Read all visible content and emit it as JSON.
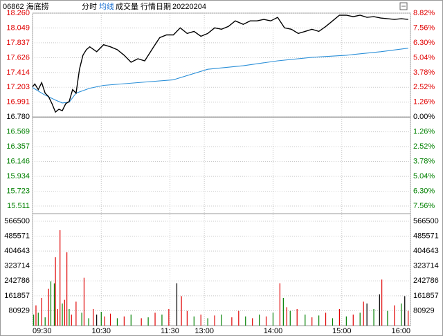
{
  "chart_data": {
    "type": "intraday",
    "header": {
      "code": "06862 海底捞",
      "tabs": [
        "分时",
        "均线",
        "成交量"
      ],
      "date_label": "行情日期",
      "date": "20220204"
    },
    "xlim": [
      0,
      330
    ],
    "xticks": [
      {
        "value": 0,
        "label": "09:30"
      },
      {
        "value": 60,
        "label": "10:30"
      },
      {
        "value": 120,
        "label": "11:30"
      },
      {
        "value": 150,
        "label": "13:00"
      },
      {
        "value": 210,
        "label": "14:00"
      },
      {
        "value": 270,
        "label": "15:00"
      },
      {
        "value": 330,
        "label": "16:00"
      }
    ],
    "ylim": [
      15.511,
      18.26
    ],
    "yticks": [
      {
        "value": 18.26,
        "label": "18.260"
      },
      18.049,
      17.837,
      17.626,
      17.414,
      17.203,
      16.991,
      {
        "value": 16.78,
        "label": "16.780"
      },
      16.569,
      16.357,
      16.146,
      15.934,
      15.723,
      15.511
    ],
    "y2lim": [
      -7.56,
      8.82
    ],
    "y2ticks": [
      {
        "value": 8.82,
        "label": "8.82%"
      },
      {
        "value": 7.56,
        "label": "7.56%"
      },
      {
        "value": 6.3,
        "label": "6.30%"
      },
      {
        "value": 5.04,
        "label": "5.04%"
      },
      {
        "value": 3.78,
        "label": "3.78%"
      },
      {
        "value": 2.52,
        "label": "2.52%"
      },
      {
        "value": 1.26,
        "label": "1.26%"
      },
      {
        "value": 0,
        "label": "0.00%"
      },
      {
        "value": -1.26,
        "label": "1.26%"
      },
      {
        "value": -2.52,
        "label": "2.52%"
      },
      {
        "value": -3.78,
        "label": "3.78%"
      },
      {
        "value": -5.04,
        "label": "5.04%"
      },
      {
        "value": -6.3,
        "label": "6.30%"
      },
      {
        "value": -7.56,
        "label": "7.56%"
      }
    ],
    "volume_ylim": [
      0,
      566500
    ],
    "volume_yticks": [
      566500,
      485571,
      404643,
      323714,
      242786,
      161857,
      80929
    ],
    "up_color": "#e00000",
    "down_color": "#008000",
    "flat_color": "#000000",
    "price": {
      "color": "#000000",
      "x": [
        0,
        2,
        5,
        8,
        11,
        14,
        17,
        20,
        23,
        26,
        29,
        32,
        35,
        38,
        41,
        44,
        47,
        50,
        56,
        62,
        68,
        74,
        80,
        86,
        92,
        98,
        105,
        111,
        117,
        123,
        129,
        135,
        141,
        147,
        153,
        159,
        165,
        171,
        177,
        184,
        190,
        196,
        202,
        208,
        214,
        220,
        226,
        232,
        238,
        244,
        250,
        256,
        262,
        268,
        274,
        280,
        286,
        292,
        298,
        304,
        310,
        316,
        322,
        328
      ],
      "values": [
        17.21,
        17.25,
        17.17,
        17.27,
        17.12,
        17.07,
        16.97,
        16.85,
        16.89,
        16.87,
        16.97,
        17.0,
        17.17,
        17.12,
        17.46,
        17.66,
        17.74,
        17.78,
        17.71,
        17.81,
        17.78,
        17.74,
        17.66,
        17.56,
        17.61,
        17.58,
        17.76,
        17.91,
        17.95,
        17.95,
        18.05,
        17.97,
        18.0,
        17.93,
        17.97,
        18.05,
        18.03,
        18.07,
        18.15,
        18.1,
        18.15,
        18.15,
        18.17,
        18.15,
        18.2,
        18.05,
        18.03,
        17.97,
        18.0,
        18.03,
        18.0,
        18.07,
        18.15,
        18.23,
        18.23,
        18.21,
        18.23,
        18.2,
        18.21,
        18.19,
        18.18,
        18.17,
        18.18,
        18.17
      ]
    },
    "average": {
      "color": "#2a8fd8",
      "x": [
        0,
        10,
        20,
        26,
        32,
        38,
        50,
        62,
        92,
        123,
        153,
        184,
        214,
        244,
        274,
        304,
        328
      ],
      "values": [
        17.2,
        17.1,
        17.02,
        16.98,
        16.99,
        17.12,
        17.19,
        17.23,
        17.27,
        17.31,
        17.46,
        17.51,
        17.58,
        17.63,
        17.66,
        17.71,
        17.76
      ]
    },
    "volume": {
      "x": [
        1,
        3,
        5,
        8,
        11,
        14,
        16,
        19,
        20,
        22,
        24,
        26,
        28,
        30,
        32,
        34,
        38,
        43,
        45,
        49,
        53,
        56,
        60,
        63,
        68,
        74,
        80,
        86,
        95,
        101,
        107,
        113,
        119,
        126,
        130,
        135,
        141,
        147,
        153,
        159,
        165,
        174,
        180,
        186,
        192,
        198,
        204,
        210,
        216,
        219,
        222,
        225,
        231,
        238,
        244,
        250,
        256,
        262,
        268,
        274,
        280,
        286,
        289,
        292,
        298,
        303,
        305,
        310,
        316,
        322,
        325,
        328
      ],
      "values": [
        60000,
        110000,
        70000,
        150000,
        45000,
        200000,
        240000,
        229000,
        371000,
        90000,
        518000,
        120000,
        140000,
        398000,
        90000,
        60000,
        130000,
        70000,
        260000,
        40000,
        90000,
        60000,
        75000,
        50000,
        65000,
        40000,
        50000,
        60000,
        40000,
        45000,
        70000,
        60000,
        90000,
        230000,
        160000,
        80000,
        50000,
        60000,
        40000,
        55000,
        60000,
        45000,
        80000,
        50000,
        40000,
        60000,
        50000,
        70000,
        230000,
        150000,
        100000,
        80000,
        90000,
        60000,
        45000,
        55000,
        70000,
        40000,
        90000,
        50000,
        60000,
        70000,
        130000,
        120000,
        90000,
        170000,
        250000,
        80000,
        110000,
        120000,
        160000,
        80000
      ],
      "colors": [
        "#008000",
        "#e00000",
        "#008000",
        "#e00000",
        "#008000",
        "#e00000",
        "#008000",
        "#008000",
        "#e00000",
        "#e00000",
        "#e00000",
        "#008000",
        "#e00000",
        "#e00000",
        "#008000",
        "#e00000",
        "#e00000",
        "#008000",
        "#e00000",
        "#008000",
        "#e00000",
        "#000000",
        "#008000",
        "#e00000",
        "#e00000",
        "#008000",
        "#e00000",
        "#008000",
        "#e00000",
        "#008000",
        "#e00000",
        "#008000",
        "#e00000",
        "#000000",
        "#e00000",
        "#e00000",
        "#008000",
        "#e00000",
        "#008000",
        "#e00000",
        "#008000",
        "#e00000",
        "#e00000",
        "#008000",
        "#e00000",
        "#008000",
        "#e00000",
        "#008000",
        "#e00000",
        "#008000",
        "#e00000",
        "#008000",
        "#e00000",
        "#008000",
        "#e00000",
        "#008000",
        "#e00000",
        "#008000",
        "#e00000",
        "#008000",
        "#e00000",
        "#008000",
        "#e00000",
        "#000000",
        "#008000",
        "#000000",
        "#e00000",
        "#008000",
        "#e00000",
        "#008000",
        "#000000",
        "#e00000"
      ]
    }
  }
}
